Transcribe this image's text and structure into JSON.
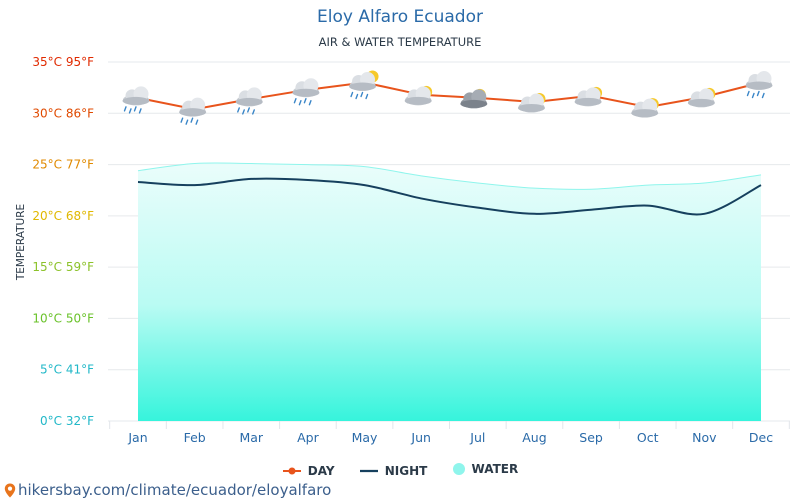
{
  "title": "Eloy Alfaro Ecuador",
  "subtitle": "AIR & WATER TEMPERATURE",
  "source": "hikersbay.com/climate/ecuador/eloyalfaro",
  "chart_data": {
    "type": "line",
    "title": "Eloy Alfaro Ecuador",
    "subtitle": "AIR & WATER TEMPERATURE",
    "ylabel": "TEMPERATURE",
    "xlabel": "",
    "categories": [
      "Jan",
      "Feb",
      "Mar",
      "Apr",
      "May",
      "Jun",
      "Jul",
      "Aug",
      "Sep",
      "Oct",
      "Nov",
      "Dec"
    ],
    "ylim": [
      0,
      35
    ],
    "y_ticks": [
      {
        "value": 0,
        "label": "0°C 32°F",
        "color": "#22b8c8"
      },
      {
        "value": 5,
        "label": "5°C 41°F",
        "color": "#22b8c8"
      },
      {
        "value": 10,
        "label": "10°C 50°F",
        "color": "#6ac22a"
      },
      {
        "value": 15,
        "label": "15°C 59°F",
        "color": "#8cc22a"
      },
      {
        "value": 20,
        "label": "20°C 68°F",
        "color": "#e0b800"
      },
      {
        "value": 25,
        "label": "25°C 77°F",
        "color": "#e08a00"
      },
      {
        "value": 30,
        "label": "30°C 86°F",
        "color": "#e04a00"
      },
      {
        "value": 35,
        "label": "35°C 95°F",
        "color": "#e02a00"
      }
    ],
    "series": [
      {
        "name": "DAY",
        "color": "#e8541c",
        "values": [
          31.5,
          30.4,
          31.4,
          32.3,
          33.0,
          31.8,
          31.5,
          31.1,
          31.7,
          30.6,
          31.6,
          33.0
        ]
      },
      {
        "name": "NIGHT",
        "color": "#16405e",
        "values": [
          23.3,
          23.0,
          23.6,
          23.5,
          23.0,
          21.7,
          20.8,
          20.2,
          20.6,
          21.0,
          20.2,
          23.0
        ]
      },
      {
        "name": "WATER",
        "color": "#8ff5ec",
        "values": [
          24.4,
          25.1,
          25.1,
          25.0,
          24.8,
          23.9,
          23.2,
          22.7,
          22.6,
          23.0,
          23.2,
          24.0
        ]
      }
    ],
    "weather_icons": [
      "rain",
      "rain",
      "rain",
      "rain",
      "sun-rain",
      "sun-cloud",
      "sun-storm-cloud",
      "sun-cloud",
      "sun-cloud",
      "sun-cloud",
      "sun-cloud",
      "rain"
    ],
    "grid": true,
    "legend_position": "bottom"
  }
}
